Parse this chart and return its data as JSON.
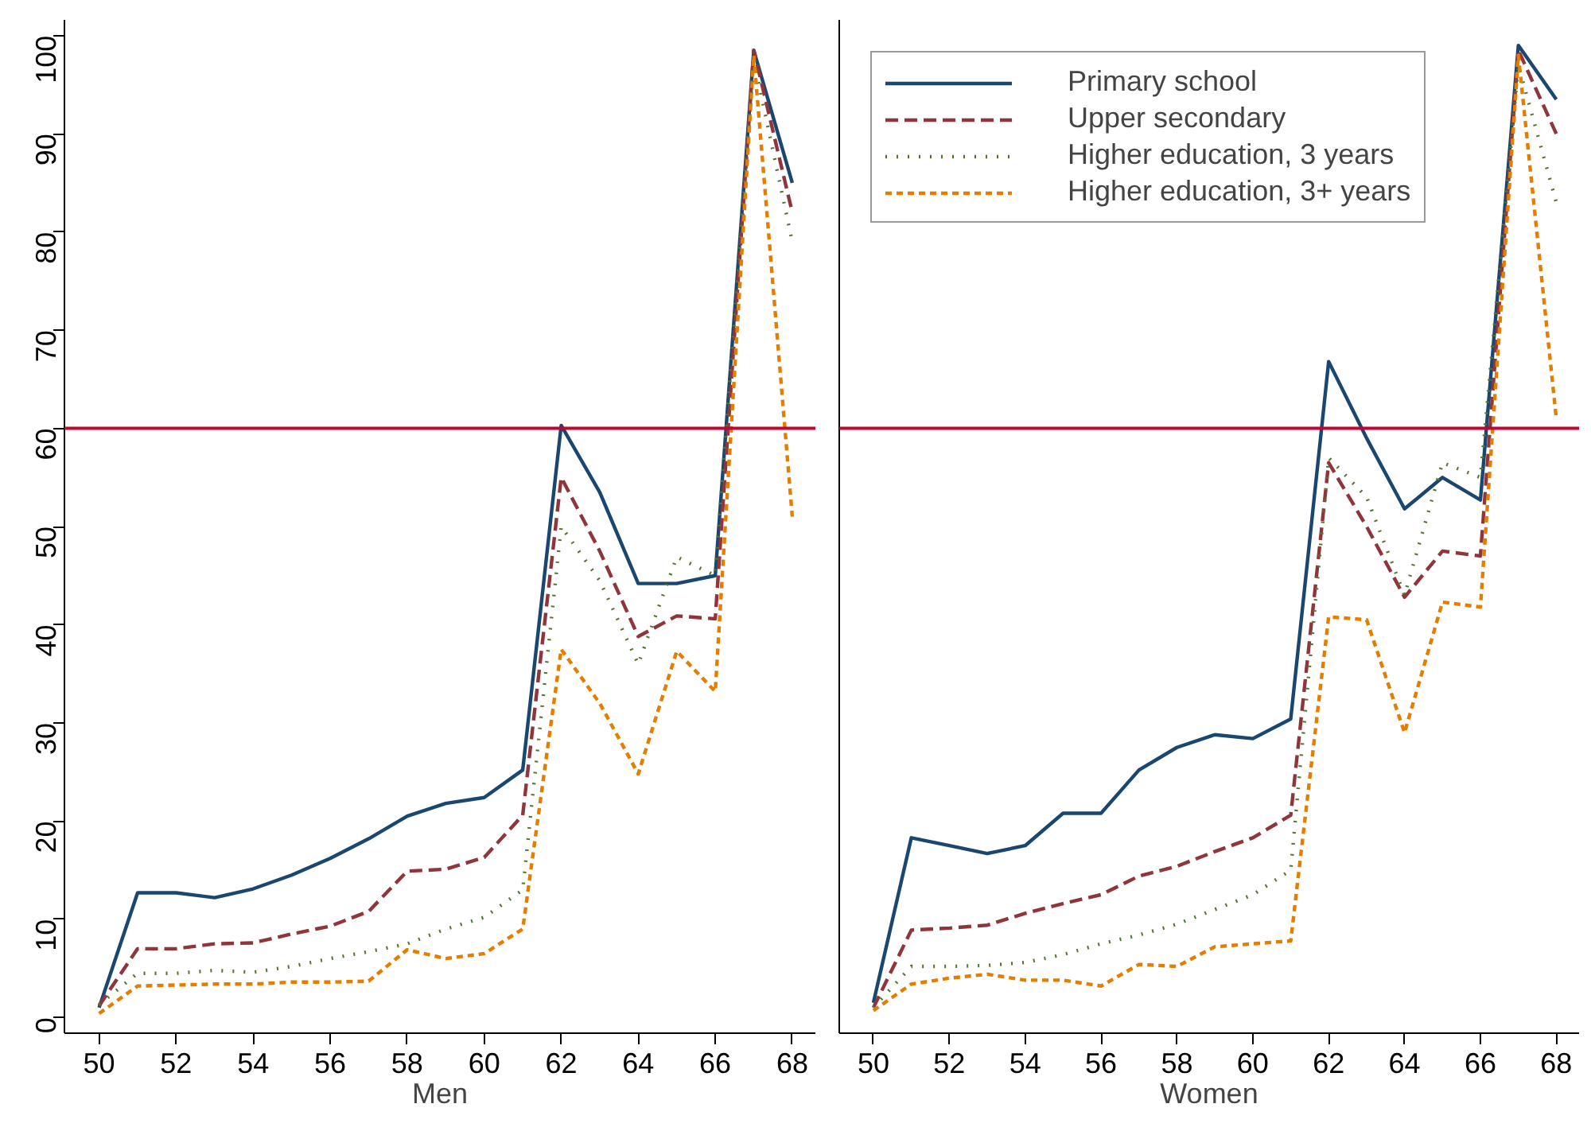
{
  "chart_data": [
    {
      "type": "line",
      "xlabel": "Men",
      "x": [
        50,
        51,
        52,
        53,
        54,
        55,
        56,
        57,
        58,
        59,
        60,
        61,
        62,
        63,
        64,
        65,
        66,
        67,
        68
      ],
      "xlim": [
        49.1,
        68.6
      ],
      "xticks": [
        50,
        52,
        54,
        56,
        58,
        60,
        62,
        64,
        66,
        68
      ],
      "ylim": [
        -1.6,
        101.6
      ],
      "yticks": [
        0,
        10,
        20,
        30,
        40,
        50,
        60,
        70,
        80,
        90,
        100
      ],
      "grid": false,
      "ref_lines": [
        {
          "axis": "y",
          "value": 60,
          "color": "#c10534"
        }
      ],
      "series": [
        {
          "color": "#1a476f",
          "line_style": "solid",
          "values": [
            1,
            12.7,
            12.7,
            12.2,
            13.1,
            14.5,
            16.2,
            18.2,
            20.5,
            21.8,
            22.4,
            25.2,
            60.3,
            53.5,
            44.2,
            44.2,
            45,
            98.5,
            85
          ]
        },
        {
          "color": "#90353b",
          "line_style": "dashed",
          "values": [
            1.2,
            7,
            7,
            7.5,
            7.6,
            8.5,
            9.3,
            10.8,
            14.9,
            15.1,
            16.3,
            20.6,
            55,
            47.5,
            38.8,
            40.9,
            40.6,
            98.5,
            82
          ]
        },
        {
          "color": "#55752f",
          "line_style": "dotted",
          "values": [
            1.3,
            4.5,
            4.5,
            4.8,
            4.6,
            5.2,
            6,
            6.7,
            7.5,
            9,
            10.2,
            13,
            50,
            44.5,
            36,
            46.9,
            45,
            97.5,
            79
          ]
        },
        {
          "color": "#e37e00",
          "line_style": "dashed",
          "values": [
            0.4,
            3.2,
            3.3,
            3.4,
            3.4,
            3.6,
            3.6,
            3.7,
            6.9,
            6,
            6.5,
            9,
            37.5,
            32,
            24.8,
            37.3,
            33.2,
            98,
            51
          ]
        }
      ]
    },
    {
      "type": "line",
      "xlabel": "Women",
      "x": [
        50,
        51,
        52,
        53,
        54,
        55,
        56,
        57,
        58,
        59,
        60,
        61,
        62,
        63,
        64,
        65,
        66,
        67,
        68
      ],
      "xlim": [
        49.1,
        68.6
      ],
      "xticks": [
        50,
        52,
        54,
        56,
        58,
        60,
        62,
        64,
        66,
        68
      ],
      "ylim": [
        -1.6,
        101.6
      ],
      "yticks": [
        0,
        10,
        20,
        30,
        40,
        50,
        60,
        70,
        80,
        90,
        100
      ],
      "tick_labels": "x",
      "grid": false,
      "legend": "top left",
      "ref_lines": [
        {
          "axis": "y",
          "value": 60,
          "color": "#c10534"
        }
      ],
      "series": [
        {
          "name": "Primary school",
          "color": "#1a476f",
          "line_style": "solid",
          "values": [
            1.5,
            18.3,
            17.5,
            16.7,
            17.5,
            20.8,
            20.8,
            25.2,
            27.5,
            28.8,
            28.4,
            30.4,
            66.8,
            59,
            51.8,
            55,
            52.7,
            99,
            93.5
          ]
        },
        {
          "name": "Upper secondary",
          "color": "#90353b",
          "line_style": "dashed",
          "values": [
            1,
            8.9,
            9.1,
            9.4,
            10.6,
            11.6,
            12.5,
            14.4,
            15.4,
            16.9,
            18.3,
            20.6,
            56.5,
            50,
            42.8,
            47.5,
            47,
            98.5,
            90
          ]
        },
        {
          "name": "Higher education, 3 years",
          "color": "#55752f",
          "line_style": "dotted",
          "values": [
            1,
            5.2,
            5.2,
            5.3,
            5.6,
            6.4,
            7.5,
            8.4,
            9.5,
            11,
            12.5,
            15,
            57,
            53,
            43,
            56.5,
            55,
            97,
            83
          ]
        },
        {
          "name": "Higher education, 3+ years",
          "color": "#e37e00",
          "line_style": "dashed",
          "values": [
            0.7,
            3.4,
            4,
            4.4,
            3.8,
            3.8,
            3.2,
            5.4,
            5.2,
            7.2,
            7.5,
            7.8,
            40.8,
            40.5,
            29,
            42.3,
            41.8,
            98,
            61
          ]
        }
      ]
    }
  ]
}
